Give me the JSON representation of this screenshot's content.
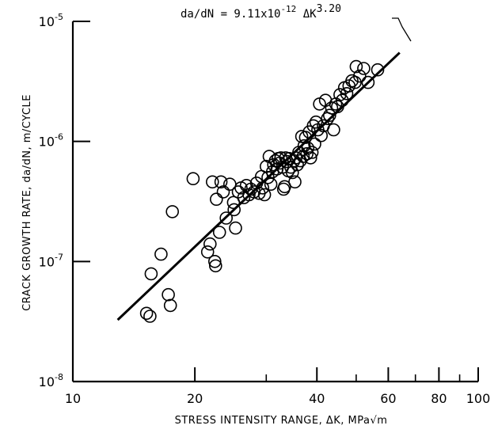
{
  "chart_data": {
    "type": "scatter",
    "xlabel": "STRESS INTENSITY RANGE, ΔK, MPa√m",
    "ylabel": "CRACK GROWTH RATE, da/dN, m/CYCLE",
    "xscale": "log",
    "yscale": "log",
    "xlim": [
      10,
      100
    ],
    "ylim": [
      1e-08,
      1e-05
    ],
    "x_ticks": [
      {
        "value": 10,
        "label": "10"
      },
      {
        "value": 20,
        "label": "20"
      },
      {
        "value": 40,
        "label": "40"
      },
      {
        "value": 60,
        "label": "60"
      },
      {
        "value": 80,
        "label": "80"
      },
      {
        "value": 100,
        "label": "100"
      }
    ],
    "x_minor_ticks": [
      30,
      50,
      70,
      90
    ],
    "y_ticks": [
      {
        "value": 1e-08,
        "base": "10",
        "exp": "-8"
      },
      {
        "value": 1e-07,
        "base": "10",
        "exp": "-7"
      },
      {
        "value": 1e-06,
        "base": "10",
        "exp": "-6"
      },
      {
        "value": 1e-05,
        "base": "10",
        "exp": "-5"
      }
    ],
    "grid": false,
    "fit_line": {
      "equation_parts": [
        "da/dN = 9.11x10",
        "-12",
        " ΔK",
        "3.20"
      ],
      "coefficient": 9.11e-12,
      "exponent": 3.2,
      "x_range": [
        12.9,
        64
      ]
    },
    "points": [
      [
        15.2,
        3.7e-08
      ],
      [
        15.5,
        3.5e-08
      ],
      [
        15.6,
        7.9e-08
      ],
      [
        16.5,
        1.15e-07
      ],
      [
        17.2,
        5.3e-08
      ],
      [
        17.4,
        4.3e-08
      ],
      [
        17.6,
        2.6e-07
      ],
      [
        19.8,
        4.9e-07
      ],
      [
        21.5,
        1.2e-07
      ],
      [
        21.8,
        1.4e-07
      ],
      [
        22.1,
        4.6e-07
      ],
      [
        22.4,
        1e-07
      ],
      [
        22.5,
        9.2e-08
      ],
      [
        22.6,
        3.3e-07
      ],
      [
        23.0,
        1.75e-07
      ],
      [
        23.2,
        4.6e-07
      ],
      [
        23.5,
        3.8e-07
      ],
      [
        23.9,
        2.3e-07
      ],
      [
        24.4,
        4.4e-07
      ],
      [
        24.9,
        3.1e-07
      ],
      [
        25.0,
        2.7e-07
      ],
      [
        25.2,
        1.9e-07
      ],
      [
        25.6,
        3.8e-07
      ],
      [
        26.0,
        4.1e-07
      ],
      [
        26.4,
        3.4e-07
      ],
      [
        26.8,
        4.3e-07
      ],
      [
        27.2,
        3.6e-07
      ],
      [
        27.5,
        4e-07
      ],
      [
        28.0,
        3.8e-07
      ],
      [
        28.4,
        4.5e-07
      ],
      [
        28.8,
        3.7e-07
      ],
      [
        29.2,
        5.1e-07
      ],
      [
        29.4,
        4.1e-07
      ],
      [
        29.7,
        3.6e-07
      ],
      [
        30.0,
        6.2e-07
      ],
      [
        30.3,
        5e-07
      ],
      [
        30.5,
        7.5e-07
      ],
      [
        30.8,
        4.4e-07
      ],
      [
        31.1,
        5.6e-07
      ],
      [
        31.3,
        6.4e-07
      ],
      [
        31.6,
        6.9e-07
      ],
      [
        31.9,
        5.9e-07
      ],
      [
        32.1,
        7.2e-07
      ],
      [
        32.4,
        6.6e-07
      ],
      [
        32.6,
        7.3e-07
      ],
      [
        32.9,
        6.1e-07
      ],
      [
        33.1,
        4e-07
      ],
      [
        33.3,
        4.2e-07
      ],
      [
        33.5,
        7.3e-07
      ],
      [
        33.8,
        6.8e-07
      ],
      [
        34.0,
        5.7e-07
      ],
      [
        34.2,
        7.2e-07
      ],
      [
        34.5,
        6.1e-07
      ],
      [
        34.8,
        5.5e-07
      ],
      [
        35.1,
        6.9e-07
      ],
      [
        35.3,
        4.6e-07
      ],
      [
        35.5,
        7.3e-07
      ],
      [
        35.8,
        6.4e-07
      ],
      [
        36.1,
        8.1e-07
      ],
      [
        36.4,
        6.9e-07
      ],
      [
        36.7,
        1.1e-06
      ],
      [
        37.0,
        7.5e-07
      ],
      [
        37.2,
        9.2e-07
      ],
      [
        37.5,
        1.08e-06
      ],
      [
        37.8,
        7.9e-07
      ],
      [
        38.0,
        8.8e-07
      ],
      [
        38.3,
        1.2e-06
      ],
      [
        38.6,
        7.3e-07
      ],
      [
        38.9,
        8.1e-07
      ],
      [
        39.2,
        1.35e-06
      ],
      [
        39.5,
        9.5e-07
      ],
      [
        39.8,
        1.45e-06
      ],
      [
        40.2,
        1.25e-06
      ],
      [
        40.6,
        2.05e-06
      ],
      [
        41.0,
        1.12e-06
      ],
      [
        41.5,
        1.35e-06
      ],
      [
        42.0,
        2.2e-06
      ],
      [
        42.5,
        1.55e-06
      ],
      [
        43.0,
        1.65e-06
      ],
      [
        43.5,
        1.9e-06
      ],
      [
        44.0,
        1.25e-06
      ],
      [
        44.5,
        2.05e-06
      ],
      [
        45.0,
        1.95e-06
      ],
      [
        45.6,
        2.45e-06
      ],
      [
        46.2,
        2.2e-06
      ],
      [
        46.8,
        2.8e-06
      ],
      [
        47.4,
        2.5e-06
      ],
      [
        48.0,
        2.9e-06
      ],
      [
        48.8,
        3.2e-06
      ],
      [
        49.7,
        3.1e-06
      ],
      [
        50.0,
        4.2e-06
      ],
      [
        51.0,
        3.5e-06
      ],
      [
        52.2,
        4.05e-06
      ],
      [
        53.5,
        3.1e-06
      ],
      [
        56.5,
        3.95e-06
      ]
    ]
  }
}
